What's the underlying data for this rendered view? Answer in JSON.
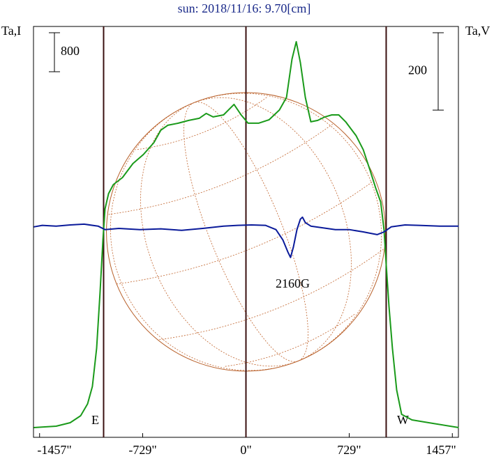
{
  "chart_data": {
    "type": "line",
    "title": "sun: 2018/11/16: 9.70[cm]",
    "y_label": "Ta,I",
    "y2_label": "Ta,V",
    "xlim": [
      -1500,
      1500
    ],
    "xticks": [
      {
        "value": -1457,
        "label": "-1457\""
      },
      {
        "value": -729,
        "label": "-729\""
      },
      {
        "value": 0,
        "label": "0\""
      },
      {
        "value": 729,
        "label": "729\""
      },
      {
        "value": 1457,
        "label": "1457\""
      }
    ],
    "ylim": [
      -200,
      8230
    ],
    "y2lim": [
      -544,
      518
    ],
    "i_scale": 800,
    "v_scale": 200,
    "disk_radius": 985,
    "vlines": [
      {
        "x": -1005,
        "label": "E"
      },
      {
        "x": 0
      },
      {
        "x": 990,
        "label": "W"
      }
    ],
    "annotation": {
      "text": "2160G",
      "x": 330,
      "y": -150
    },
    "series": [
      {
        "name": "Ta,I",
        "color": "#1a9a1a",
        "x": [
          -1498,
          -1340,
          -1241,
          -1167,
          -1118,
          -1084,
          -1054,
          -1030,
          -1010,
          -995,
          -970,
          -936,
          -872,
          -798,
          -724,
          -650,
          -601,
          -552,
          -478,
          -404,
          -330,
          -281,
          -232,
          -158,
          -84,
          -34,
          15,
          89,
          163,
          236,
          286,
          325,
          355,
          384,
          419,
          458,
          507,
          557,
          606,
          655,
          704,
          778,
          828,
          877,
          916,
          951,
          975,
          990,
          1010,
          1034,
          1064,
          1099,
          1172,
          1320,
          1502
        ],
        "values": [
          0,
          29,
          100,
          243,
          486,
          843,
          1629,
          2772,
          3844,
          4487,
          4801,
          4987,
          5130,
          5416,
          5602,
          5845,
          6102,
          6202,
          6245,
          6302,
          6345,
          6445,
          6374,
          6416,
          6631,
          6416,
          6245,
          6245,
          6316,
          6516,
          6774,
          7560,
          7917,
          7488,
          6774,
          6274,
          6302,
          6374,
          6416,
          6416,
          6274,
          5988,
          5702,
          5273,
          4916,
          4630,
          4058,
          3344,
          2486,
          1629,
          772,
          272,
          157,
          86,
          0
        ]
      },
      {
        "name": "Ta,V",
        "color": "#0a1a9a",
        "axis": "y2",
        "x": [
          -1498,
          -1438,
          -1340,
          -1241,
          -1143,
          -1044,
          -995,
          -897,
          -749,
          -601,
          -453,
          -305,
          -158,
          -59,
          39,
          138,
          212,
          261,
          296,
          315,
          335,
          360,
          384,
          399,
          419,
          458,
          532,
          631,
          729,
          828,
          926,
          975,
          1025,
          1123,
          1222,
          1369,
          1502
        ],
        "values": [
          0,
          4,
          2,
          5,
          7,
          2,
          -7,
          -4,
          -7,
          -5,
          -9,
          -4,
          2,
          4,
          5,
          4,
          -7,
          -34,
          -65,
          -79,
          -52,
          -7,
          20,
          25,
          11,
          2,
          -2,
          -7,
          -7,
          -13,
          -20,
          -13,
          0,
          5,
          4,
          2,
          2
        ]
      }
    ]
  }
}
